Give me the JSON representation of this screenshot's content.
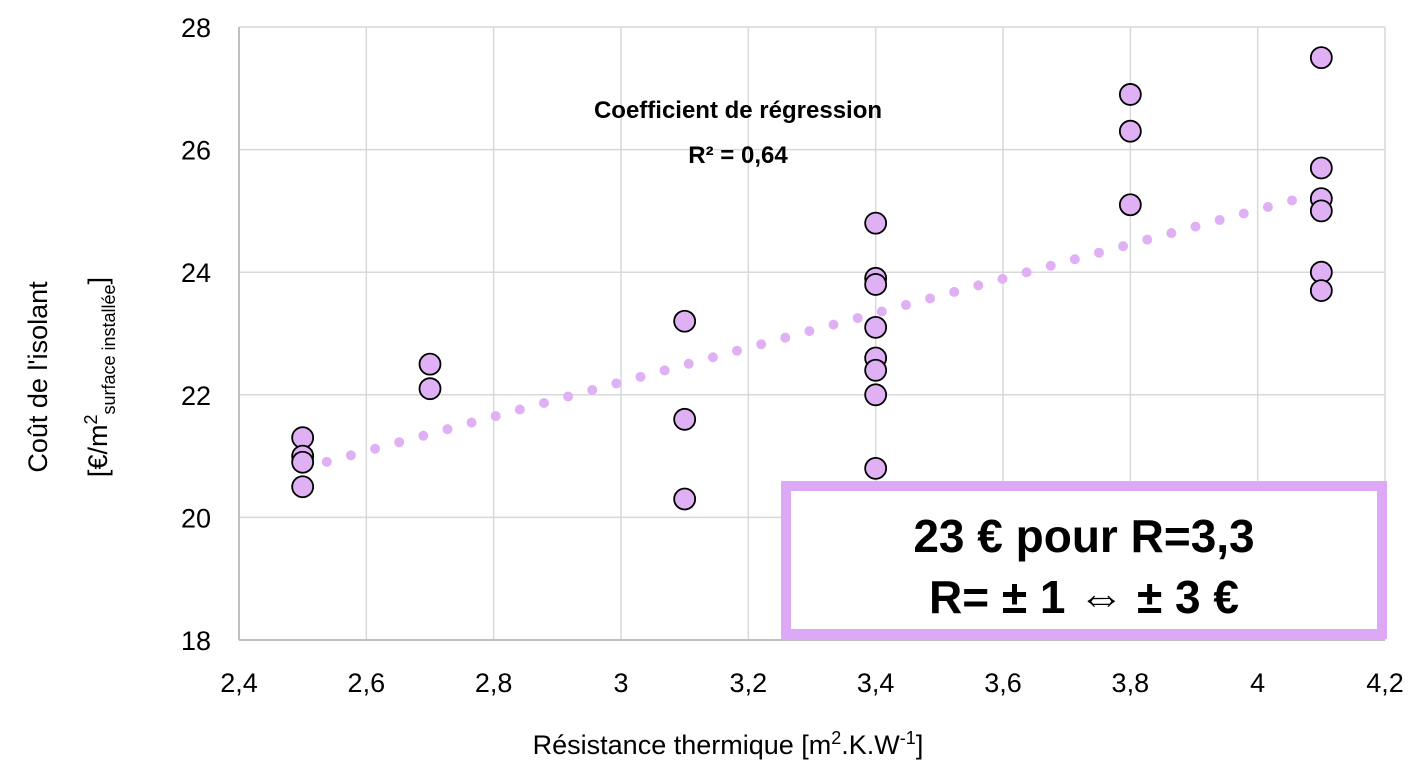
{
  "chart_data": {
    "type": "scatter",
    "title": "",
    "xlabel": {
      "main": "Résistance thermique [m",
      "sup1": "2",
      "mid": ".K.W",
      "sup2": "-1",
      "end": "]"
    },
    "ylabel": {
      "line1": "Coût de l'isolant",
      "line2_start": "[€/m",
      "line2_sup": "2",
      "line2_sub": "surface installée",
      "line2_end": "]"
    },
    "xlim": [
      2.4,
      4.2
    ],
    "ylim": [
      18,
      28
    ],
    "x_ticks": [
      2.4,
      2.6,
      2.8,
      3.0,
      3.2,
      3.4,
      3.6,
      3.8,
      4.0,
      4.2
    ],
    "x_tick_labels": [
      "2,4",
      "2,6",
      "2,8",
      "3",
      "3,2",
      "3,4",
      "3,6",
      "3,8",
      "4",
      "4,2"
    ],
    "y_ticks": [
      18,
      20,
      22,
      24,
      26,
      28
    ],
    "y_tick_labels": [
      "18",
      "20",
      "22",
      "24",
      "26",
      "28"
    ],
    "grid": true,
    "series": [
      {
        "marker_color": "#e0b0f5",
        "marker_edge": "#000000",
        "points": [
          {
            "x": 2.5,
            "y": 21.3
          },
          {
            "x": 2.5,
            "y": 21.0
          },
          {
            "x": 2.5,
            "y": 20.9
          },
          {
            "x": 2.5,
            "y": 20.5
          },
          {
            "x": 2.7,
            "y": 22.5
          },
          {
            "x": 2.7,
            "y": 22.1
          },
          {
            "x": 3.1,
            "y": 23.2
          },
          {
            "x": 3.1,
            "y": 21.6
          },
          {
            "x": 3.1,
            "y": 20.3
          },
          {
            "x": 3.4,
            "y": 24.8
          },
          {
            "x": 3.4,
            "y": 23.9
          },
          {
            "x": 3.4,
            "y": 23.8
          },
          {
            "x": 3.4,
            "y": 23.1
          },
          {
            "x": 3.4,
            "y": 22.6
          },
          {
            "x": 3.4,
            "y": 22.4
          },
          {
            "x": 3.4,
            "y": 22.0
          },
          {
            "x": 3.4,
            "y": 20.8
          },
          {
            "x": 3.8,
            "y": 26.9
          },
          {
            "x": 3.8,
            "y": 26.3
          },
          {
            "x": 3.8,
            "y": 25.1
          },
          {
            "x": 4.1,
            "y": 27.5
          },
          {
            "x": 4.1,
            "y": 25.7
          },
          {
            "x": 4.1,
            "y": 25.2
          },
          {
            "x": 4.1,
            "y": 25.0
          },
          {
            "x": 4.1,
            "y": 24.0
          },
          {
            "x": 4.1,
            "y": 23.7
          }
        ]
      }
    ],
    "trendline": {
      "type": "linear",
      "x_start": 2.5,
      "y_start": 20.8,
      "x_end": 4.1,
      "y_end": 25.3,
      "color": "#e0b0f5",
      "style": "dotted"
    },
    "annotations": {
      "regression_title": "Coefficient de régression",
      "regression_value": "R² = 0,64"
    },
    "callout": {
      "line1": "23 € pour R=3,3",
      "line2": "R= ± 1 ⇔ ± 3 €",
      "border_color": "#dda8f5"
    },
    "colors": {
      "grid": "#d9d9d9",
      "axis": "#bfbfbf"
    }
  }
}
